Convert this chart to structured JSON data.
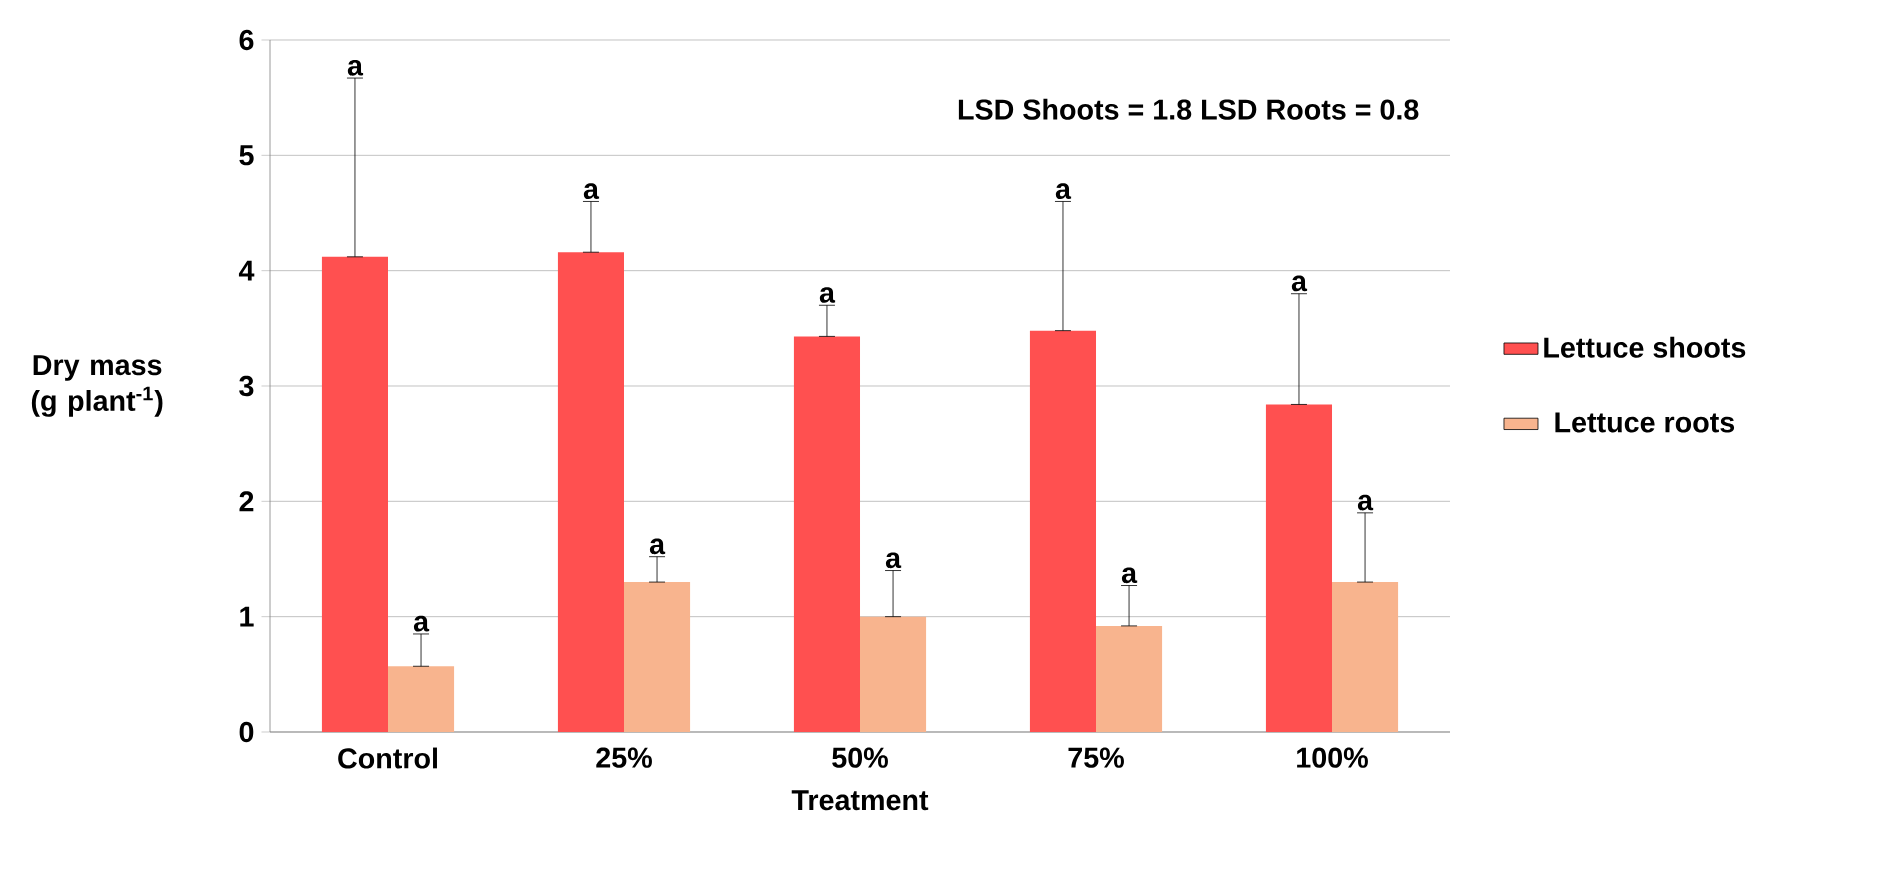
{
  "chart_data": {
    "type": "bar",
    "xlabel": "Treatment",
    "ylabel": "Dry mass (g plant$^{-1}$)",
    "categories": [
      "Control",
      "25%",
      "50%",
      "75%",
      "100%"
    ],
    "series": [
      {
        "name": "Lettuce shoots",
        "color": "#ff5050",
        "values": [
          4.12,
          4.16,
          3.43,
          3.48,
          2.84
        ],
        "errors": [
          [
            4.12,
            5.67
          ],
          [
            4.16,
            4.6
          ],
          [
            3.43,
            3.7
          ],
          [
            3.48,
            4.6
          ],
          [
            2.84,
            3.8
          ]
        ]
      },
      {
        "name": "Lettuce roots",
        "color": "#f8b48e",
        "values": [
          0.57,
          1.3,
          1.0,
          0.92,
          1.3
        ],
        "errors": [
          [
            0.57,
            0.85
          ],
          [
            1.3,
            1.52
          ],
          [
            1.0,
            1.4
          ],
          [
            0.92,
            1.27
          ],
          [
            1.3,
            1.9
          ]
        ]
      }
    ],
    "ylim": [
      0,
      6
    ],
    "yticks": [
      0,
      1,
      2,
      3,
      4,
      5,
      6
    ],
    "grid": "y",
    "legend": "right",
    "annotations": [
      "a",
      "a",
      "a",
      "a",
      "a",
      "a",
      "a",
      "a",
      "a",
      "a",
      "LSD Shoots = 1.8  LSD Roots = 0.8"
    ]
  }
}
